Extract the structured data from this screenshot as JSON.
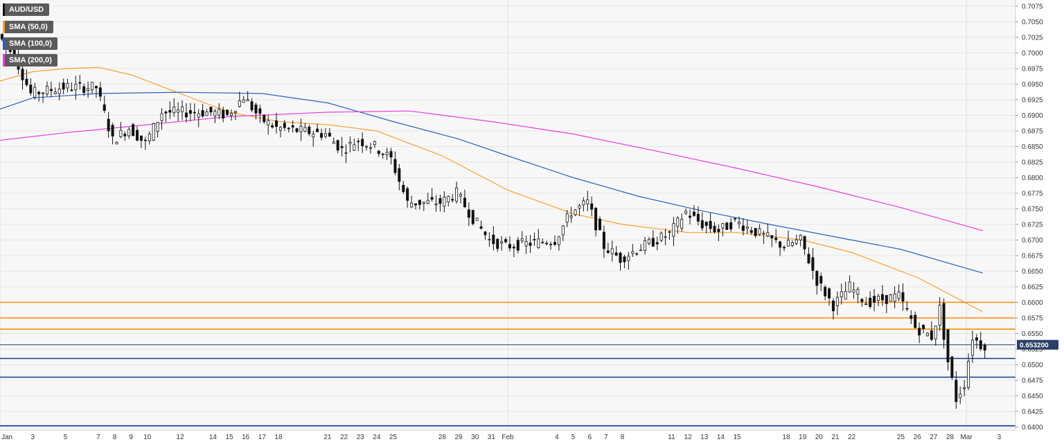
{
  "chart_data": {
    "type": "candlestick",
    "symbol": "AUD/USD",
    "legend": [
      {
        "label": "AUD/USD",
        "color": "#111111"
      },
      {
        "label": "SMA (50,0)",
        "color": "#f4a12e"
      },
      {
        "label": "SMA (100,0)",
        "color": "#2c5fbd"
      },
      {
        "label": "SMA (200,0)",
        "color": "#e83cdf"
      }
    ],
    "ylim": [
      0.6395,
      0.7085
    ],
    "y_ticks": [
      "0.7075",
      "0.7050",
      "0.7025",
      "0.7000",
      "0.6975",
      "0.6950",
      "0.6925",
      "0.6900",
      "0.6875",
      "0.6850",
      "0.6825",
      "0.6800",
      "0.6775",
      "0.6750",
      "0.6725",
      "0.6700",
      "0.6675",
      "0.6650",
      "0.6625",
      "0.6600",
      "0.6575",
      "0.6550",
      "0.6525",
      "0.6500",
      "0.6475",
      "0.6450",
      "0.6425",
      "0.6400"
    ],
    "x_ticks": [
      "Jan",
      "3",
      "5",
      "7",
      "8",
      "9",
      "10",
      "12",
      "14",
      "15",
      "16",
      "17",
      "18",
      "21",
      "22",
      "23",
      "24",
      "25",
      "28",
      "29",
      "30",
      "31",
      "Feb",
      "4",
      "5",
      "6",
      "7",
      "8",
      "11",
      "12",
      "13",
      "14",
      "15",
      "18",
      "19",
      "20",
      "21",
      "22",
      "25",
      "26",
      "27",
      "28",
      "Mar",
      "3"
    ],
    "x_tick_dates": [
      "2019-01-01",
      "2019-01-03",
      "2019-01-05",
      "2019-01-07",
      "2019-01-08",
      "2019-01-09",
      "2019-01-10",
      "2019-01-12",
      "2019-01-14",
      "2019-01-15",
      "2019-01-16",
      "2019-01-17",
      "2019-01-18",
      "2019-01-21",
      "2019-01-22",
      "2019-01-23",
      "2019-01-24",
      "2019-01-25",
      "2019-01-28",
      "2019-01-29",
      "2019-01-30",
      "2019-01-31",
      "2019-02-01",
      "2019-02-04",
      "2019-02-05",
      "2019-02-06",
      "2019-02-07",
      "2019-02-08",
      "2019-02-11",
      "2019-02-12",
      "2019-02-13",
      "2019-02-14",
      "2019-02-15",
      "2019-02-18",
      "2019-02-19",
      "2019-02-20",
      "2019-02-21",
      "2019-02-22",
      "2019-02-25",
      "2019-02-26",
      "2019-02-27",
      "2019-02-28",
      "2019-03-01",
      "2019-03-03"
    ],
    "x_range": [
      "2019-01-01",
      "2019-03-04"
    ],
    "price_anchors": [
      {
        "date": "2019-01-01",
        "close": 0.703
      },
      {
        "date": "2019-01-02",
        "close": 0.6995
      },
      {
        "date": "2019-01-03",
        "close": 0.6935
      },
      {
        "date": "2019-01-05",
        "close": 0.6945
      },
      {
        "date": "2019-01-07",
        "close": 0.6945
      },
      {
        "date": "2019-01-08",
        "close": 0.686
      },
      {
        "date": "2019-01-09",
        "close": 0.688
      },
      {
        "date": "2019-01-10",
        "close": 0.6855
      },
      {
        "date": "2019-01-11",
        "close": 0.6905
      },
      {
        "date": "2019-01-14",
        "close": 0.6905
      },
      {
        "date": "2019-01-15",
        "close": 0.69
      },
      {
        "date": "2019-01-16",
        "close": 0.693
      },
      {
        "date": "2019-01-17",
        "close": 0.6895
      },
      {
        "date": "2019-01-18",
        "close": 0.688
      },
      {
        "date": "2019-01-21",
        "close": 0.687
      },
      {
        "date": "2019-01-22",
        "close": 0.6845
      },
      {
        "date": "2019-01-23",
        "close": 0.686
      },
      {
        "date": "2019-01-24",
        "close": 0.685
      },
      {
        "date": "2019-01-25",
        "close": 0.683
      },
      {
        "date": "2019-01-26",
        "close": 0.676
      },
      {
        "date": "2019-01-28",
        "close": 0.676
      },
      {
        "date": "2019-01-29",
        "close": 0.6775
      },
      {
        "date": "2019-01-30",
        "close": 0.6735
      },
      {
        "date": "2019-01-31",
        "close": 0.67
      },
      {
        "date": "2019-02-01",
        "close": 0.669
      },
      {
        "date": "2019-02-04",
        "close": 0.67
      },
      {
        "date": "2019-02-05",
        "close": 0.6745
      },
      {
        "date": "2019-02-06",
        "close": 0.676
      },
      {
        "date": "2019-02-07",
        "close": 0.669
      },
      {
        "date": "2019-02-08",
        "close": 0.667
      },
      {
        "date": "2019-02-09",
        "close": 0.6685
      },
      {
        "date": "2019-02-11",
        "close": 0.671
      },
      {
        "date": "2019-02-12",
        "close": 0.6745
      },
      {
        "date": "2019-02-13",
        "close": 0.6725
      },
      {
        "date": "2019-02-14",
        "close": 0.6715
      },
      {
        "date": "2019-02-15",
        "close": 0.673
      },
      {
        "date": "2019-02-18",
        "close": 0.669
      },
      {
        "date": "2019-02-19",
        "close": 0.67
      },
      {
        "date": "2019-02-20",
        "close": 0.6635
      },
      {
        "date": "2019-02-21",
        "close": 0.6595
      },
      {
        "date": "2019-02-22",
        "close": 0.6625
      },
      {
        "date": "2019-02-23",
        "close": 0.66
      },
      {
        "date": "2019-02-25",
        "close": 0.661
      },
      {
        "date": "2019-02-26",
        "close": 0.656
      },
      {
        "date": "2019-02-27",
        "close": 0.6545
      },
      {
        "date": "2019-02-27T12:00",
        "close": 0.659
      },
      {
        "date": "2019-02-28",
        "close": 0.6505
      },
      {
        "date": "2019-02-28T12:00",
        "close": 0.6445
      },
      {
        "date": "2019-03-01",
        "close": 0.647
      },
      {
        "date": "2019-03-01T12:00",
        "close": 0.6545
      },
      {
        "date": "2019-03-02",
        "close": 0.6532
      }
    ],
    "series": [
      {
        "name": "SMA (50,0)",
        "color": "#f4a12e",
        "points": [
          {
            "date": "2019-01-01",
            "value": 0.6955
          },
          {
            "date": "2019-01-03",
            "value": 0.697
          },
          {
            "date": "2019-01-05",
            "value": 0.6975
          },
          {
            "date": "2019-01-07",
            "value": 0.6977
          },
          {
            "date": "2019-01-09",
            "value": 0.6965
          },
          {
            "date": "2019-01-12",
            "value": 0.6935
          },
          {
            "date": "2019-01-15",
            "value": 0.6905
          },
          {
            "date": "2019-01-18",
            "value": 0.689
          },
          {
            "date": "2019-01-21",
            "value": 0.6885
          },
          {
            "date": "2019-01-24",
            "value": 0.6875
          },
          {
            "date": "2019-01-28",
            "value": 0.6835
          },
          {
            "date": "2019-02-01",
            "value": 0.678
          },
          {
            "date": "2019-02-05",
            "value": 0.6742
          },
          {
            "date": "2019-02-08",
            "value": 0.6725
          },
          {
            "date": "2019-02-12",
            "value": 0.6712
          },
          {
            "date": "2019-02-15",
            "value": 0.6712
          },
          {
            "date": "2019-02-19",
            "value": 0.67
          },
          {
            "date": "2019-02-22",
            "value": 0.668
          },
          {
            "date": "2019-02-26",
            "value": 0.664
          },
          {
            "date": "2019-03-02",
            "value": 0.6585
          }
        ]
      },
      {
        "name": "SMA (100,0)",
        "color": "#2c5fbd",
        "points": [
          {
            "date": "2019-01-01",
            "value": 0.691
          },
          {
            "date": "2019-01-03",
            "value": 0.6928
          },
          {
            "date": "2019-01-07",
            "value": 0.6935
          },
          {
            "date": "2019-01-12",
            "value": 0.6937
          },
          {
            "date": "2019-01-17",
            "value": 0.6935
          },
          {
            "date": "2019-01-21",
            "value": 0.692
          },
          {
            "date": "2019-01-25",
            "value": 0.689
          },
          {
            "date": "2019-01-29",
            "value": 0.6862
          },
          {
            "date": "2019-02-01",
            "value": 0.6835
          },
          {
            "date": "2019-02-05",
            "value": 0.68
          },
          {
            "date": "2019-02-09",
            "value": 0.677
          },
          {
            "date": "2019-02-13",
            "value": 0.6746
          },
          {
            "date": "2019-02-17",
            "value": 0.6725
          },
          {
            "date": "2019-02-21",
            "value": 0.6705
          },
          {
            "date": "2019-02-25",
            "value": 0.6685
          },
          {
            "date": "2019-03-02",
            "value": 0.6647
          }
        ]
      },
      {
        "name": "SMA (200,0)",
        "color": "#e83cdf",
        "points": [
          {
            "date": "2019-01-01",
            "value": 0.686
          },
          {
            "date": "2019-01-05",
            "value": 0.6872
          },
          {
            "date": "2019-01-10",
            "value": 0.6885
          },
          {
            "date": "2019-01-15",
            "value": 0.6898
          },
          {
            "date": "2019-01-21",
            "value": 0.6905
          },
          {
            "date": "2019-01-26",
            "value": 0.6907
          },
          {
            "date": "2019-01-31",
            "value": 0.689
          },
          {
            "date": "2019-02-05",
            "value": 0.687
          },
          {
            "date": "2019-02-10",
            "value": 0.6843
          },
          {
            "date": "2019-02-15",
            "value": 0.6815
          },
          {
            "date": "2019-02-20",
            "value": 0.6785
          },
          {
            "date": "2019-02-25",
            "value": 0.6752
          },
          {
            "date": "2019-03-02",
            "value": 0.6715
          }
        ]
      }
    ],
    "horizontal_lines": [
      {
        "value": 0.66,
        "color": "#ff8c00"
      },
      {
        "value": 0.6575,
        "color": "#ff8c00"
      },
      {
        "value": 0.6557,
        "color": "#ff8c00"
      },
      {
        "value": 0.6532,
        "color": "#1f3a6e"
      },
      {
        "value": 0.651,
        "color": "#0b3b8c"
      },
      {
        "value": 0.648,
        "color": "#0b3b8c"
      },
      {
        "value": 0.6402,
        "color": "#0b3b8c"
      }
    ],
    "current_price": {
      "label": "0.653200",
      "value": 0.6532,
      "color": "#2a3f66"
    },
    "vertical_grid_dates": [
      "2019-01-01",
      "2019-02-01",
      "2019-03-01"
    ],
    "grid": true
  }
}
